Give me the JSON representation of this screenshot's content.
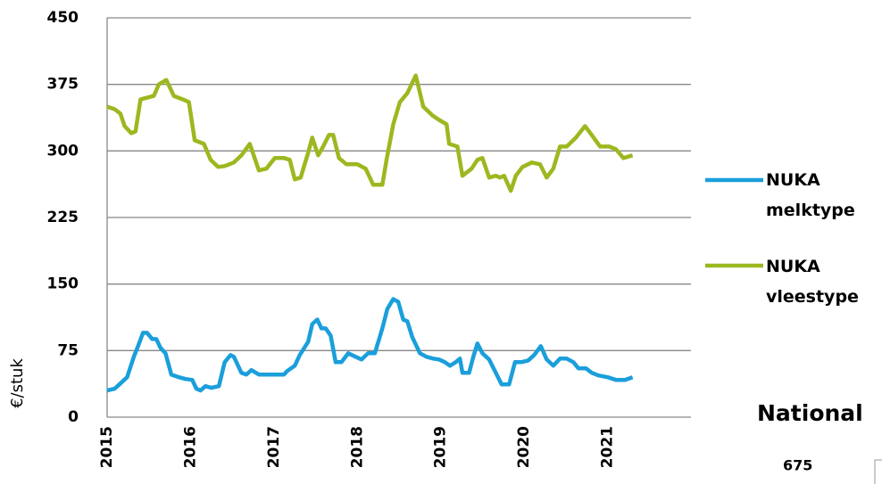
{
  "chart_data": {
    "type": "line",
    "y_label": "€/stuk",
    "xlim": [
      2015,
      2022
    ],
    "xticks": [
      2015,
      2016,
      2017,
      2018,
      2019,
      2020,
      2021
    ],
    "ylim": [
      0,
      450
    ],
    "yticks": [
      0,
      75,
      150,
      225,
      300,
      375,
      450
    ],
    "grid": true,
    "legend": "right",
    "series": [
      {
        "name": "NUKA melktype",
        "color": "#1a9fdb",
        "x": [
          2015.0,
          2015.09,
          2015.16,
          2015.24,
          2015.32,
          2015.37,
          2015.43,
          2015.48,
          2015.54,
          2015.59,
          2015.64,
          2015.7,
          2015.77,
          2015.86,
          2015.94,
          2016.02,
          2016.07,
          2016.12,
          2016.18,
          2016.25,
          2016.34,
          2016.41,
          2016.48,
          2016.52,
          2016.61,
          2016.67,
          2016.73,
          2016.82,
          2016.93,
          2017.03,
          2017.12,
          2017.16,
          2017.25,
          2017.31,
          2017.41,
          2017.46,
          2017.52,
          2017.57,
          2017.62,
          2017.68,
          2017.74,
          2017.81,
          2017.89,
          2017.98,
          2018.05,
          2018.13,
          2018.21,
          2018.3,
          2018.36,
          2018.43,
          2018.49,
          2018.55,
          2018.6,
          2018.66,
          2018.75,
          2018.83,
          2018.91,
          2018.98,
          2019.05,
          2019.11,
          2019.18,
          2019.23,
          2019.26,
          2019.34,
          2019.39,
          2019.44,
          2019.5,
          2019.58,
          2019.66,
          2019.73,
          2019.82,
          2019.89,
          2019.97,
          2020.05,
          2020.12,
          2020.2,
          2020.27,
          2020.35,
          2020.43,
          2020.51,
          2020.59,
          2020.65,
          2020.74,
          2020.81,
          2020.89,
          2021.0,
          2021.1,
          2021.21,
          2021.3
        ],
        "values": [
          30,
          32,
          38,
          45,
          68,
          80,
          95,
          95,
          88,
          88,
          78,
          72,
          48,
          45,
          43,
          42,
          32,
          30,
          35,
          33,
          35,
          62,
          70,
          68,
          50,
          48,
          53,
          48,
          48,
          48,
          48,
          52,
          58,
          70,
          85,
          105,
          110,
          100,
          100,
          92,
          62,
          62,
          72,
          68,
          65,
          72,
          72,
          100,
          122,
          133,
          130,
          110,
          108,
          90,
          72,
          68,
          66,
          65,
          62,
          58,
          62,
          66,
          50,
          50,
          68,
          83,
          72,
          65,
          50,
          37,
          37,
          62,
          62,
          64,
          70,
          80,
          65,
          58,
          66,
          66,
          62,
          55,
          55,
          50,
          47,
          45,
          42,
          42,
          45
        ]
      },
      {
        "name": "NUKA vleestype",
        "color": "#9cb820",
        "x": [
          2015.0,
          2015.09,
          2015.16,
          2015.21,
          2015.29,
          2015.34,
          2015.4,
          2015.48,
          2015.56,
          2015.62,
          2015.71,
          2015.8,
          2015.91,
          2015.98,
          2016.05,
          2016.16,
          2016.24,
          2016.33,
          2016.41,
          2016.52,
          2016.61,
          2016.71,
          2016.82,
          2016.91,
          2017.01,
          2017.12,
          2017.19,
          2017.25,
          2017.32,
          2017.41,
          2017.46,
          2017.53,
          2017.59,
          2017.66,
          2017.71,
          2017.78,
          2017.87,
          2018.0,
          2018.1,
          2018.19,
          2018.3,
          2018.35,
          2018.43,
          2018.51,
          2018.6,
          2018.7,
          2018.79,
          2018.9,
          2018.98,
          2019.07,
          2019.1,
          2019.2,
          2019.26,
          2019.37,
          2019.44,
          2019.5,
          2019.58,
          2019.66,
          2019.71,
          2019.76,
          2019.84,
          2019.9,
          2019.98,
          2020.09,
          2020.19,
          2020.27,
          2020.35,
          2020.43,
          2020.51,
          2020.62,
          2020.73,
          2020.81,
          2020.91,
          2021.02,
          2021.1,
          2021.19,
          2021.3
        ],
        "values": [
          350,
          347,
          342,
          328,
          320,
          322,
          358,
          360,
          362,
          375,
          380,
          362,
          358,
          355,
          312,
          308,
          290,
          282,
          283,
          287,
          295,
          308,
          278,
          280,
          292,
          292,
          290,
          268,
          270,
          298,
          315,
          295,
          305,
          318,
          318,
          292,
          285,
          285,
          280,
          262,
          262,
          290,
          330,
          355,
          365,
          385,
          350,
          340,
          335,
          330,
          308,
          305,
          272,
          280,
          290,
          292,
          270,
          272,
          270,
          272,
          255,
          272,
          282,
          287,
          285,
          270,
          280,
          305,
          305,
          315,
          328,
          318,
          305,
          305,
          302,
          292,
          295
        ]
      }
    ],
    "annotations": [
      "National",
      "675"
    ]
  }
}
